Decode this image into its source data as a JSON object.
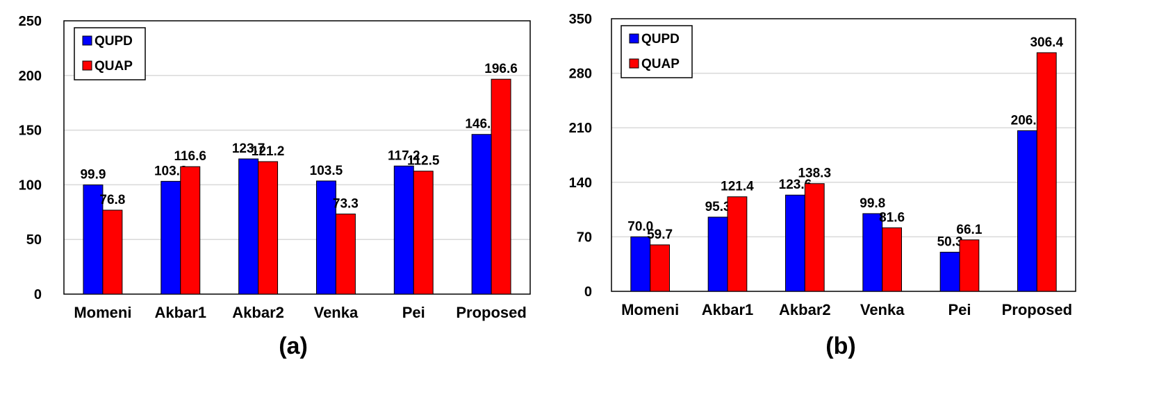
{
  "colors": {
    "QUPD": "#0000ff",
    "QUAP": "#ff0000",
    "grid": "#d9d9d9",
    "axis": "#000000"
  },
  "chart_data": [
    {
      "type": "bar",
      "caption": "(a)",
      "categories": [
        "Momeni",
        "Akbar1",
        "Akbar2",
        "Venka",
        "Pei",
        "Proposed"
      ],
      "series": [
        {
          "name": "QUPD",
          "values": [
            99.9,
            103.2,
            123.7,
            103.5,
            117.2,
            146.1
          ]
        },
        {
          "name": "QUAP",
          "values": [
            76.8,
            116.6,
            121.2,
            73.3,
            112.5,
            196.6
          ]
        }
      ],
      "ylim": [
        0,
        250
      ],
      "yticks": [
        0,
        50,
        100,
        150,
        200,
        250
      ],
      "grid": true,
      "legend": "top-left",
      "xlabel": "",
      "ylabel": "",
      "title": ""
    },
    {
      "type": "bar",
      "caption": "(b)",
      "categories": [
        "Momeni",
        "Akbar1",
        "Akbar2",
        "Venka",
        "Pei",
        "Proposed"
      ],
      "series": [
        {
          "name": "QUPD",
          "values": [
            70.0,
            95.3,
            123.6,
            99.8,
            50.3,
            206.3
          ]
        },
        {
          "name": "QUAP",
          "values": [
            59.7,
            121.4,
            138.3,
            81.6,
            66.1,
            306.4
          ]
        }
      ],
      "ylim": [
        0,
        350
      ],
      "yticks": [
        0,
        70,
        140,
        210,
        280,
        350
      ],
      "grid": true,
      "legend": "top-left",
      "xlabel": "",
      "ylabel": "",
      "title": ""
    }
  ]
}
